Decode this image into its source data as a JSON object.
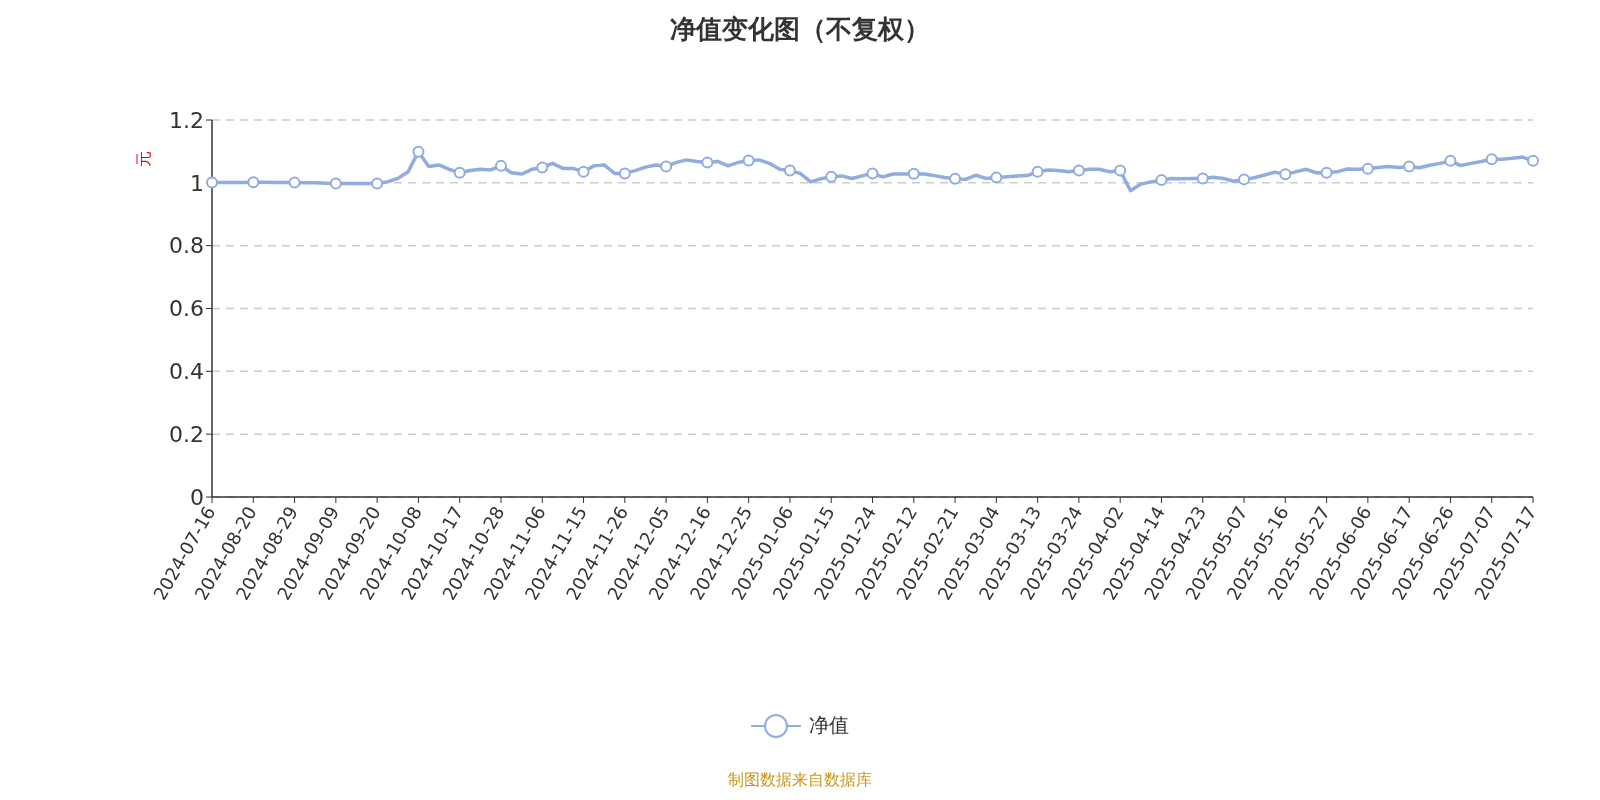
{
  "chart_data": {
    "type": "line",
    "title": "净值变化图（不复权）",
    "ylabel": "元",
    "categories": [
      "2024-07-16",
      null,
      null,
      null,
      "2024-08-20",
      null,
      null,
      null,
      "2024-08-29",
      null,
      null,
      null,
      "2024-09-09",
      null,
      null,
      null,
      "2024-09-20",
      null,
      null,
      null,
      "2024-10-08",
      null,
      null,
      null,
      "2024-10-17",
      null,
      null,
      null,
      "2024-10-28",
      null,
      null,
      null,
      "2024-11-06",
      null,
      null,
      null,
      "2024-11-15",
      null,
      null,
      null,
      "2024-11-26",
      null,
      null,
      null,
      "2024-12-05",
      null,
      null,
      null,
      "2024-12-16",
      null,
      null,
      null,
      "2024-12-25",
      null,
      null,
      null,
      "2025-01-06",
      null,
      null,
      null,
      "2025-01-15",
      null,
      null,
      null,
      "2025-01-24",
      null,
      null,
      null,
      "2025-02-12",
      null,
      null,
      null,
      "2025-02-21",
      null,
      null,
      null,
      "2025-03-04",
      null,
      null,
      null,
      "2025-03-13",
      null,
      null,
      null,
      "2025-03-24",
      null,
      null,
      null,
      "2025-04-02",
      null,
      null,
      null,
      "2025-04-14",
      null,
      null,
      null,
      "2025-04-23",
      null,
      null,
      null,
      "2025-05-07",
      null,
      null,
      null,
      "2025-05-16",
      null,
      null,
      null,
      "2025-05-27",
      null,
      null,
      null,
      "2025-06-06",
      null,
      null,
      null,
      "2025-06-17",
      null,
      null,
      null,
      "2025-06-26",
      null,
      null,
      null,
      "2025-07-07",
      null,
      null,
      null,
      "2025-07-17"
    ],
    "series": [
      {
        "name": "净值",
        "color": "#91acdf",
        "values": [
          1.001,
          1.001,
          1.001,
          1.001,
          1.002,
          1.002,
          1.001,
          1.001,
          1.001,
          1.0,
          1.0,
          0.999,
          0.998,
          0.998,
          0.998,
          0.998,
          0.998,
          1.003,
          1.014,
          1.035,
          1.099,
          1.052,
          1.057,
          1.043,
          1.032,
          1.039,
          1.043,
          1.041,
          1.054,
          1.032,
          1.028,
          1.043,
          1.049,
          1.062,
          1.046,
          1.046,
          1.035,
          1.054,
          1.057,
          1.03,
          1.03,
          1.039,
          1.05,
          1.057,
          1.052,
          1.065,
          1.073,
          1.068,
          1.065,
          1.068,
          1.054,
          1.065,
          1.071,
          1.073,
          1.062,
          1.043,
          1.039,
          1.03,
          1.003,
          1.013,
          1.019,
          1.022,
          1.014,
          1.022,
          1.03,
          1.019,
          1.028,
          1.028,
          1.029,
          1.028,
          1.023,
          1.017,
          1.013,
          1.011,
          1.024,
          1.014,
          1.017,
          1.019,
          1.022,
          1.023,
          1.035,
          1.041,
          1.039,
          1.035,
          1.039,
          1.043,
          1.043,
          1.035,
          1.039,
          0.975,
          0.996,
          1.003,
          1.009,
          1.014,
          1.013,
          1.014,
          1.014,
          1.018,
          1.014,
          1.005,
          1.011,
          1.016,
          1.025,
          1.034,
          1.027,
          1.035,
          1.043,
          1.032,
          1.032,
          1.035,
          1.044,
          1.043,
          1.045,
          1.049,
          1.052,
          1.049,
          1.052,
          1.048,
          1.056,
          1.062,
          1.07,
          1.055,
          1.062,
          1.068,
          1.075,
          1.075,
          1.078,
          1.082,
          1.07
        ]
      },
      {
        "type": "scatter",
        "marker": "circle",
        "color": "#91acdf",
        "values": [
          1.001,
          null,
          null,
          null,
          1.002,
          null,
          null,
          null,
          1.001,
          null,
          null,
          null,
          0.998,
          null,
          null,
          null,
          0.998,
          null,
          null,
          null,
          1.099,
          null,
          null,
          null,
          1.032,
          null,
          null,
          null,
          1.054,
          null,
          null,
          null,
          1.049,
          null,
          null,
          null,
          1.035,
          null,
          null,
          null,
          1.03,
          null,
          null,
          null,
          1.052,
          null,
          null,
          null,
          1.065,
          null,
          null,
          null,
          1.071,
          null,
          null,
          null,
          1.039,
          null,
          null,
          null,
          1.019,
          null,
          null,
          null,
          1.03,
          null,
          null,
          null,
          1.029,
          null,
          null,
          null,
          1.013,
          null,
          null,
          null,
          1.017,
          null,
          null,
          null,
          1.035,
          null,
          null,
          null,
          1.039,
          null,
          null,
          null,
          1.039,
          null,
          null,
          null,
          1.009,
          null,
          null,
          null,
          1.014,
          null,
          null,
          null,
          1.011,
          null,
          null,
          null,
          1.027,
          null,
          null,
          null,
          1.032,
          null,
          null,
          null,
          1.045,
          null,
          null,
          null,
          1.052,
          null,
          null,
          null,
          1.07,
          null,
          null,
          null,
          1.075,
          null,
          null,
          null,
          1.07
        ]
      }
    ],
    "ylim": [
      0,
      1.2
    ],
    "yticks": [
      0,
      0.2,
      0.4,
      0.6,
      0.8,
      1,
      1.2
    ],
    "grid": "y",
    "legend": "bottom",
    "line_style": "solid",
    "annotations": [
      "制图数据来自数据库"
    ]
  }
}
